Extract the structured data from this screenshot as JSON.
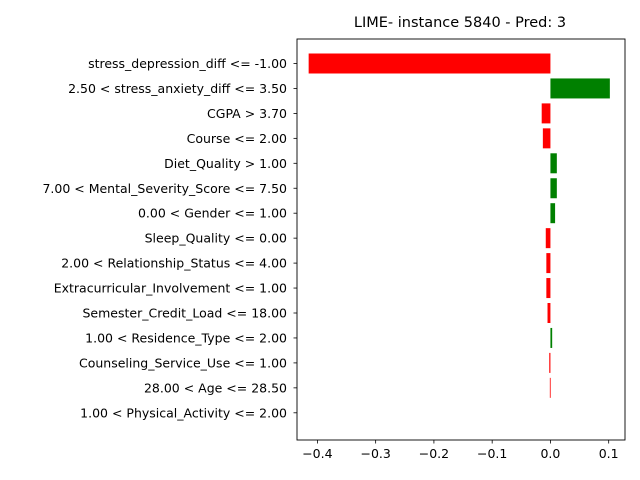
{
  "chart_data": {
    "type": "bar",
    "orientation": "horizontal",
    "title": "LIME- instance 5840 - Pred: 3",
    "xlabel": "",
    "ylabel": "",
    "xlim": [
      -0.435,
      0.128
    ],
    "xticks": [
      -0.4,
      -0.3,
      -0.2,
      -0.1,
      0.0,
      0.1
    ],
    "xtick_labels": [
      "−0.4",
      "−0.3",
      "−0.2",
      "−0.1",
      "0.0",
      "0.1"
    ],
    "grid": false,
    "legend": "none",
    "colors": {
      "positive": "#008000",
      "negative": "#ff0000"
    },
    "categories": [
      "stress_depression_diff <= -1.00",
      "2.50 < stress_anxiety_diff <= 3.50",
      "CGPA > 3.70",
      "Course <= 2.00",
      "Diet_Quality > 1.00",
      "7.00 < Mental_Severity_Score <= 7.50",
      "0.00 < Gender <= 1.00",
      "Sleep_Quality <= 0.00",
      "2.00 < Relationship_Status <= 4.00",
      "Extracurricular_Involvement <= 1.00",
      "Semester_Credit_Load <= 18.00",
      "1.00 < Residence_Type <= 2.00",
      "Counseling_Service_Use <= 1.00",
      "28.00 < Age <= 28.50",
      "1.00 < Physical_Activity <= 2.00"
    ],
    "values": [
      -0.415,
      0.102,
      -0.015,
      -0.013,
      0.011,
      0.011,
      0.008,
      -0.008,
      -0.007,
      -0.007,
      -0.005,
      0.003,
      -0.002,
      -0.001,
      0.0
    ]
  }
}
